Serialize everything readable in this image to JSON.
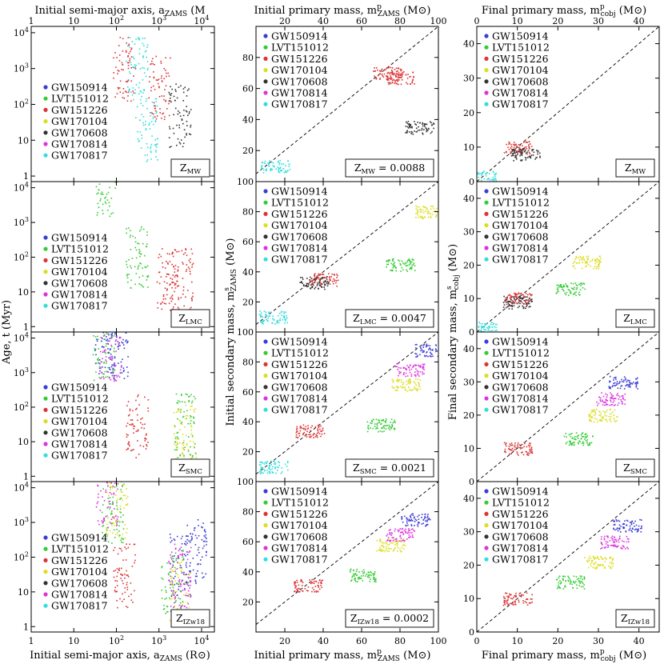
{
  "series_colors": {
    "GW150914": "#3b3bd6",
    "LVT151012": "#33cc33",
    "GW151226": "#dd3333",
    "GW170104": "#dddd22",
    "GW170608": "#333333",
    "GW170814": "#dd33dd",
    "GW170817": "#33dddd"
  },
  "legend_labels": [
    "GW150914",
    "LVT151012",
    "GW151226",
    "GW170104",
    "GW170608",
    "GW170814",
    "GW170817"
  ],
  "axis_text": {
    "col1_top": "Initial semi-major axis, a",
    "col1_top_sub": "ZAMS",
    "col1_top_unit": " (R",
    "col1_bottom": "Initial semi-major axis, a",
    "col2_top": "Initial primary mass, m",
    "col2_top_sub": "ZAMS",
    "col2_top_sup": "p",
    "col2_bottom": "Initial primary mass, m",
    "col3_top": "Final primary mass, m",
    "col3_top_sub": "cobj",
    "col3_bottom": "Final primary mass, m",
    "ylabel_col1": "Age, t (Myr)",
    "ylabel_col2": "Initial secondary mass, m",
    "ylabel_col2_sub": "ZAMS",
    "ylabel_col3": "Final secondary mass, m",
    "ylabel_col3_sub": "cobj",
    "sup_s": "s",
    "unit_msun": " (M",
    "sun_symbol": "⊙",
    "close_paren": ")"
  },
  "tick_labels": {
    "col1_x": [
      "1",
      "10",
      "10",
      "10",
      "10"
    ],
    "col1_x_exp": [
      "",
      "",
      "2",
      "3",
      "4"
    ],
    "col1_y": [
      "1",
      "10",
      "10",
      "10",
      "10"
    ],
    "col1_y_exp": [
      "",
      "",
      "2",
      "3",
      "4"
    ],
    "col2_x_top": [
      "20",
      "40",
      "60",
      "80",
      "100"
    ],
    "col2_x_bottom": [
      "20",
      "40",
      "60",
      "80",
      "100"
    ],
    "col2_y": [
      "20",
      "40",
      "60",
      "80",
      "100"
    ],
    "col3_x": [
      "0",
      "10",
      "20",
      "30",
      "40"
    ],
    "col3_y": [
      "0",
      "10",
      "20",
      "30",
      "40"
    ]
  },
  "metallicity_labels": [
    {
      "row": 0,
      "col1": "Z",
      "col1_sub": "MW",
      "col2": "Z",
      "col2_sub": "MW",
      "col2_value": " = 0.0088",
      "col3": "Z",
      "col3_sub": "MW"
    },
    {
      "row": 1,
      "col1": "Z",
      "col1_sub": "LMC",
      "col2": "Z",
      "col2_sub": "LMC",
      "col2_value": " = 0.0047",
      "col3": "Z",
      "col3_sub": "LMC"
    },
    {
      "row": 2,
      "col1": "Z",
      "col1_sub": "SMC",
      "col2": "Z",
      "col2_sub": "SMC",
      "col2_value": " = 0.0021",
      "col3": "Z",
      "col3_sub": "SMC"
    },
    {
      "row": 3,
      "col1": "Z",
      "col1_sub": "IZw18",
      "col2": "Z",
      "col2_sub": "IZw18",
      "col2_value": " = 0.0002",
      "col3": "Z",
      "col3_sub": "IZw18"
    }
  ],
  "chart_data": [
    {
      "type": "scatter",
      "panel": "initial semi-major axis vs age",
      "x_scale": "log",
      "y_scale": "log",
      "xlim": [
        1,
        20000
      ],
      "ylim": [
        0.7,
        15000
      ],
      "series": [
        {
          "name": "GW150914",
          "rows": {
            "MW": [],
            "LMC": [],
            "SMC": [
              [
                50,
                8000
              ],
              [
                100,
                4000
              ]
            ],
            "IZw18": [
              [
                3000,
                60
              ],
              [
                7000,
                150
              ]
            ]
          }
        },
        {
          "name": "LVT151012",
          "rows": {
            "MW": [],
            "LMC": [
              [
                60,
                10000
              ],
              [
                300,
                100
              ]
            ],
            "SMC": [
              [
                4000,
                30
              ],
              [
                50,
                5000
              ]
            ],
            "IZw18": [
              [
                80,
                2000
              ],
              [
                2000,
                20
              ]
            ]
          }
        },
        {
          "name": "GW151226",
          "rows": {
            "MW": [
              [
                150,
                1000
              ],
              [
                1000,
                300
              ]
            ],
            "LMC": [
              [
                1600,
                22
              ],
              [
                3500,
                22
              ]
            ],
            "SMC": [
              [
                300,
                30
              ]
            ],
            "IZw18": [
              [
                150,
                30
              ]
            ]
          }
        },
        {
          "name": "GW170104",
          "rows": {
            "MW": [],
            "LMC": [],
            "SMC": [
              [
                4000,
                15
              ]
            ],
            "IZw18": [
              [
                100,
                3000
              ],
              [
                3000,
                10
              ]
            ]
          }
        },
        {
          "name": "GW170608",
          "rows": {
            "MW": [
              [
                3000,
                50
              ]
            ],
            "LMC": [],
            "SMC": [],
            "IZw18": []
          }
        },
        {
          "name": "GW170814",
          "rows": {
            "MW": [],
            "LMC": [],
            "SMC": [
              [
                70,
                5000
              ]
            ],
            "IZw18": [
              [
                60,
                6000
              ],
              [
                3000,
                30
              ]
            ]
          }
        },
        {
          "name": "GW170817",
          "rows": {
            "MW": [
              [
                300,
                1000
              ],
              [
                500,
                20
              ]
            ],
            "LMC": [],
            "SMC": [],
            "IZw18": []
          }
        }
      ]
    },
    {
      "type": "scatter",
      "panel": "initial primary mass vs initial secondary mass",
      "xlim": [
        5,
        100
      ],
      "ylim": [
        0,
        100
      ],
      "series": [
        {
          "name": "GW150914",
          "rows": {
            "MW": [],
            "LMC": [],
            "SMC": [
              [
                95,
                88
              ]
            ],
            "IZw18": [
              [
                88,
                75
              ]
            ]
          }
        },
        {
          "name": "LVT151012",
          "rows": {
            "MW": [],
            "LMC": [
              [
                80,
                45
              ]
            ],
            "SMC": [
              [
                70,
                38
              ]
            ],
            "IZw18": [
              [
                60,
                38
              ]
            ]
          }
        },
        {
          "name": "GW151226",
          "rows": {
            "MW": [
              [
                73,
                70
              ],
              [
                80,
                67
              ]
            ],
            "LMC": [
              [
                40,
                35
              ]
            ],
            "SMC": [
              [
                33,
                34
              ]
            ],
            "IZw18": [
              [
                32,
                31
              ]
            ]
          }
        },
        {
          "name": "GW170104",
          "rows": {
            "MW": [],
            "LMC": [
              [
                95,
                80
              ]
            ],
            "SMC": [
              [
                83,
                65
              ]
            ],
            "IZw18": [
              [
                75,
                58
              ]
            ]
          }
        },
        {
          "name": "GW170608",
          "rows": {
            "MW": [
              [
                90,
                35
              ]
            ],
            "LMC": [
              [
                35,
                33
              ]
            ],
            "SMC": [],
            "IZw18": []
          }
        },
        {
          "name": "GW170814",
          "rows": {
            "MW": [],
            "LMC": [],
            "SMC": [
              [
                85,
                75
              ]
            ],
            "IZw18": [
              [
                80,
                65
              ]
            ]
          }
        },
        {
          "name": "GW170817",
          "rows": {
            "MW": [
              [
                15,
                10
              ]
            ],
            "LMC": [
              [
                14,
                10
              ]
            ],
            "SMC": [
              [
                14,
                10
              ]
            ],
            "IZw18": []
          }
        }
      ]
    },
    {
      "type": "scatter",
      "panel": "final primary mass vs final secondary mass",
      "xlim": [
        0,
        45
      ],
      "ylim": [
        0,
        45
      ],
      "series": [
        {
          "name": "GW150914",
          "rows": {
            "MW": [],
            "LMC": [],
            "SMC": [
              [
                36,
                30
              ]
            ],
            "IZw18": [
              [
                37,
                32
              ]
            ]
          }
        },
        {
          "name": "LVT151012",
          "rows": {
            "MW": [],
            "LMC": [
              [
                23,
                13
              ]
            ],
            "SMC": [
              [
                25,
                13
              ]
            ],
            "IZw18": [
              [
                23,
                15
              ]
            ]
          }
        },
        {
          "name": "GW151226",
          "rows": {
            "MW": [
              [
                10,
                10
              ]
            ],
            "LMC": [
              [
                10,
                10
              ]
            ],
            "SMC": [
              [
                10,
                10
              ]
            ],
            "IZw18": [
              [
                10,
                10
              ]
            ]
          }
        },
        {
          "name": "GW170104",
          "rows": {
            "MW": [],
            "LMC": [
              [
                27,
                21
              ]
            ],
            "SMC": [
              [
                31,
                20
              ]
            ],
            "IZw18": [
              [
                30,
                21
              ]
            ]
          }
        },
        {
          "name": "GW170608",
          "rows": {
            "MW": [
              [
                12,
                8
              ]
            ],
            "LMC": [
              [
                10,
                9
              ]
            ],
            "SMC": [],
            "IZw18": []
          }
        },
        {
          "name": "GW170814",
          "rows": {
            "MW": [],
            "LMC": [],
            "SMC": [
              [
                33,
                25
              ]
            ],
            "IZw18": [
              [
                34,
                27
              ]
            ]
          }
        },
        {
          "name": "GW170817",
          "rows": {
            "MW": [
              [
                1.5,
                1.3
              ]
            ],
            "LMC": [
              [
                1.5,
                1.3
              ]
            ],
            "SMC": [],
            "IZw18": []
          }
        }
      ]
    }
  ]
}
